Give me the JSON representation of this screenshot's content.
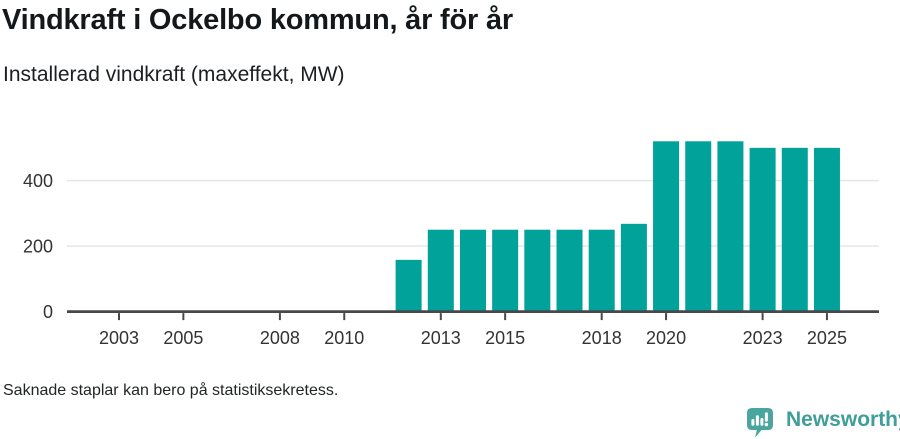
{
  "header": {
    "title": "Vindkraft i Ockelbo kommun, år för år",
    "subtitle": "Installerad vindkraft (maxeffekt, MW)"
  },
  "footer": {
    "note": "Saknade staplar kan bero på statistiksekretess.",
    "brand": "Newsworthy"
  },
  "colors": {
    "bar": "#00a29a",
    "axis": "#47484a",
    "grid": "#e4e4e4",
    "tick_label": "#333333",
    "logo_icon": "#4aa5a0",
    "logo_text": "#3f9e99"
  },
  "chart_data": {
    "type": "bar",
    "title": "Vindkraft i Ockelbo kommun, år för år",
    "subtitle": "Installerad vindkraft (maxeffekt, MW)",
    "xlabel": "",
    "ylabel": "Installerad vindkraft (maxeffekt, MW)",
    "x": [
      2001,
      2002,
      2003,
      2004,
      2005,
      2006,
      2007,
      2008,
      2009,
      2010,
      2011,
      2012,
      2013,
      2014,
      2015,
      2016,
      2017,
      2018,
      2019,
      2020,
      2021,
      2022,
      2023,
      2024,
      2025
    ],
    "values": [
      null,
      null,
      null,
      null,
      null,
      null,
      null,
      null,
      null,
      null,
      null,
      158,
      250,
      250,
      250,
      250,
      250,
      250,
      268,
      520,
      520,
      520,
      500,
      500,
      500
    ],
    "y_ticks": [
      0,
      200,
      400
    ],
    "x_tick_labels": [
      2003,
      2005,
      2008,
      2010,
      2013,
      2015,
      2018,
      2020,
      2023,
      2025
    ],
    "ylim": [
      0,
      545
    ],
    "x_domain": [
      2001.4,
      2026.6
    ],
    "grid": "horizontal-only",
    "legend": "none",
    "annotation": "Saknade staplar kan bero på statistiksekretess."
  }
}
